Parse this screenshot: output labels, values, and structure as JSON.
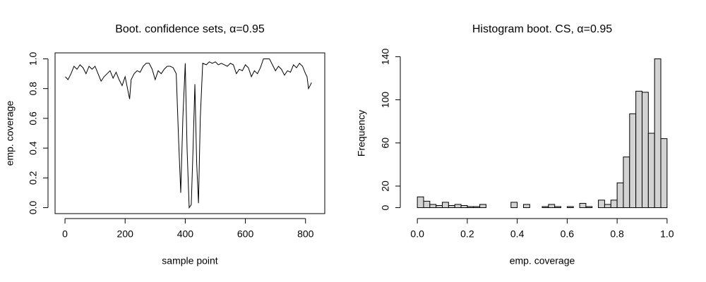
{
  "chart_data": [
    {
      "type": "line",
      "title": "Boot. confidence sets, α=0.95",
      "x_label": "sample point",
      "y_label": "emp. coverage",
      "color": "#000000",
      "x": [
        1,
        10,
        20,
        30,
        40,
        50,
        60,
        70,
        80,
        90,
        100,
        110,
        120,
        130,
        140,
        150,
        160,
        170,
        180,
        190,
        200,
        210,
        215,
        220,
        230,
        240,
        250,
        260,
        270,
        280,
        290,
        300,
        310,
        320,
        330,
        340,
        350,
        360,
        370,
        378,
        385,
        392,
        400,
        406,
        413,
        420,
        426,
        432,
        438,
        444,
        450,
        458,
        470,
        480,
        490,
        500,
        510,
        520,
        530,
        540,
        550,
        560,
        570,
        580,
        590,
        600,
        610,
        620,
        630,
        640,
        650,
        660,
        670,
        680,
        690,
        700,
        710,
        720,
        730,
        740,
        750,
        760,
        770,
        780,
        790,
        800,
        805,
        810,
        815,
        820
      ],
      "values": [
        0.88,
        0.86,
        0.9,
        0.95,
        0.93,
        0.96,
        0.94,
        0.9,
        0.95,
        0.93,
        0.95,
        0.9,
        0.85,
        0.88,
        0.9,
        0.92,
        0.87,
        0.91,
        0.86,
        0.82,
        0.88,
        0.78,
        0.73,
        0.86,
        0.9,
        0.92,
        0.91,
        0.95,
        0.97,
        0.97,
        0.93,
        0.86,
        0.92,
        0.9,
        0.93,
        0.95,
        0.95,
        0.94,
        0.9,
        0.45,
        0.1,
        0.6,
        0.97,
        0.4,
        0.0,
        0.02,
        0.4,
        0.83,
        0.3,
        0.03,
        0.6,
        0.97,
        0.96,
        0.98,
        0.97,
        0.98,
        0.96,
        0.97,
        0.96,
        0.95,
        0.97,
        0.96,
        0.9,
        0.93,
        0.92,
        0.96,
        0.94,
        0.88,
        0.92,
        0.9,
        0.94,
        1.0,
        1.0,
        1.0,
        0.96,
        0.92,
        0.95,
        0.93,
        0.89,
        0.92,
        0.91,
        0.96,
        0.94,
        0.97,
        0.95,
        0.9,
        0.88,
        0.8,
        0.82,
        0.84
      ],
      "xlim": [
        -33,
        864
      ],
      "xticks": [
        0,
        200,
        400,
        600,
        800
      ],
      "ylim": [
        -0.04,
        1.04
      ],
      "yticks": [
        {
          "value": 0,
          "label": "0.0"
        },
        0.2,
        0.4,
        0.6,
        0.8,
        {
          "value": 1,
          "label": "1.0"
        }
      ]
    },
    {
      "type": "histogram",
      "title": "Histogram boot. CS, α=0.95",
      "x_label": "emp. coverage",
      "y_label": "Frequency",
      "color": "#d3d3d3",
      "bins": [
        0,
        0.025,
        0.05,
        0.075,
        0.1,
        0.125,
        0.15,
        0.175,
        0.2,
        0.225,
        0.25,
        0.275,
        0.3,
        0.325,
        0.35,
        0.375,
        0.4,
        0.425,
        0.45,
        0.475,
        0.5,
        0.525,
        0.55,
        0.575,
        0.6,
        0.625,
        0.65,
        0.675,
        0.7,
        0.725,
        0.75,
        0.775,
        0.8,
        0.825,
        0.85,
        0.875,
        0.9,
        0.925,
        0.95,
        0.975,
        1
      ],
      "values": [
        10,
        6,
        3,
        2,
        5,
        2,
        3,
        2,
        1,
        1,
        3,
        0,
        0,
        0,
        0,
        5,
        0,
        3,
        0,
        0,
        1,
        3,
        1,
        0,
        1,
        0,
        4,
        1,
        0,
        7,
        3,
        7,
        23,
        47,
        87,
        108,
        107,
        69,
        138,
        64
      ],
      "xlim": [
        -0.04,
        1.04
      ],
      "xticks": [
        {
          "value": 0,
          "label": "0.0"
        },
        0.2,
        0.4,
        0.6,
        0.8,
        {
          "value": 1,
          "label": "1.0"
        }
      ],
      "ylim": [
        -5.52,
        143.52
      ],
      "yticks": [
        0,
        20,
        60,
        100,
        140
      ]
    }
  ]
}
